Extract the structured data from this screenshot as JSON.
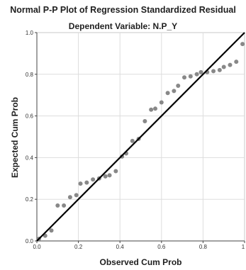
{
  "chart_data": {
    "type": "scatter",
    "title": "Normal P-P Plot of Regression Standardized Residual",
    "subtitle": "Dependent Variable: N.P_Y",
    "xlabel": "Observed Cum Prob",
    "ylabel": "Expected Cum Prob",
    "xlim": [
      0,
      1
    ],
    "ylim": [
      0,
      1
    ],
    "xticks": [
      "0.0",
      "0.2",
      "0.4",
      "0.6",
      "0.8",
      "1"
    ],
    "yticks": [
      "0.0",
      "0.2",
      "0.4",
      "0.6",
      "0.8",
      "1.0"
    ],
    "grid": true,
    "reference_line": {
      "from": [
        0,
        0
      ],
      "to": [
        1,
        1
      ],
      "color": "#000000"
    },
    "point_color": "#888888",
    "points": [
      [
        0.01,
        0.01
      ],
      [
        0.04,
        0.025
      ],
      [
        0.07,
        0.05
      ],
      [
        0.1,
        0.17
      ],
      [
        0.13,
        0.17
      ],
      [
        0.16,
        0.21
      ],
      [
        0.19,
        0.22
      ],
      [
        0.21,
        0.275
      ],
      [
        0.24,
        0.28
      ],
      [
        0.27,
        0.295
      ],
      [
        0.3,
        0.3
      ],
      [
        0.33,
        0.31
      ],
      [
        0.35,
        0.315
      ],
      [
        0.38,
        0.335
      ],
      [
        0.41,
        0.405
      ],
      [
        0.43,
        0.42
      ],
      [
        0.46,
        0.48
      ],
      [
        0.49,
        0.49
      ],
      [
        0.52,
        0.575
      ],
      [
        0.55,
        0.63
      ],
      [
        0.57,
        0.635
      ],
      [
        0.6,
        0.665
      ],
      [
        0.63,
        0.71
      ],
      [
        0.66,
        0.72
      ],
      [
        0.68,
        0.745
      ],
      [
        0.71,
        0.785
      ],
      [
        0.74,
        0.79
      ],
      [
        0.77,
        0.8
      ],
      [
        0.79,
        0.81
      ],
      [
        0.82,
        0.81
      ],
      [
        0.85,
        0.815
      ],
      [
        0.88,
        0.82
      ],
      [
        0.9,
        0.835
      ],
      [
        0.93,
        0.845
      ],
      [
        0.96,
        0.86
      ],
      [
        0.99,
        0.945
      ]
    ]
  }
}
